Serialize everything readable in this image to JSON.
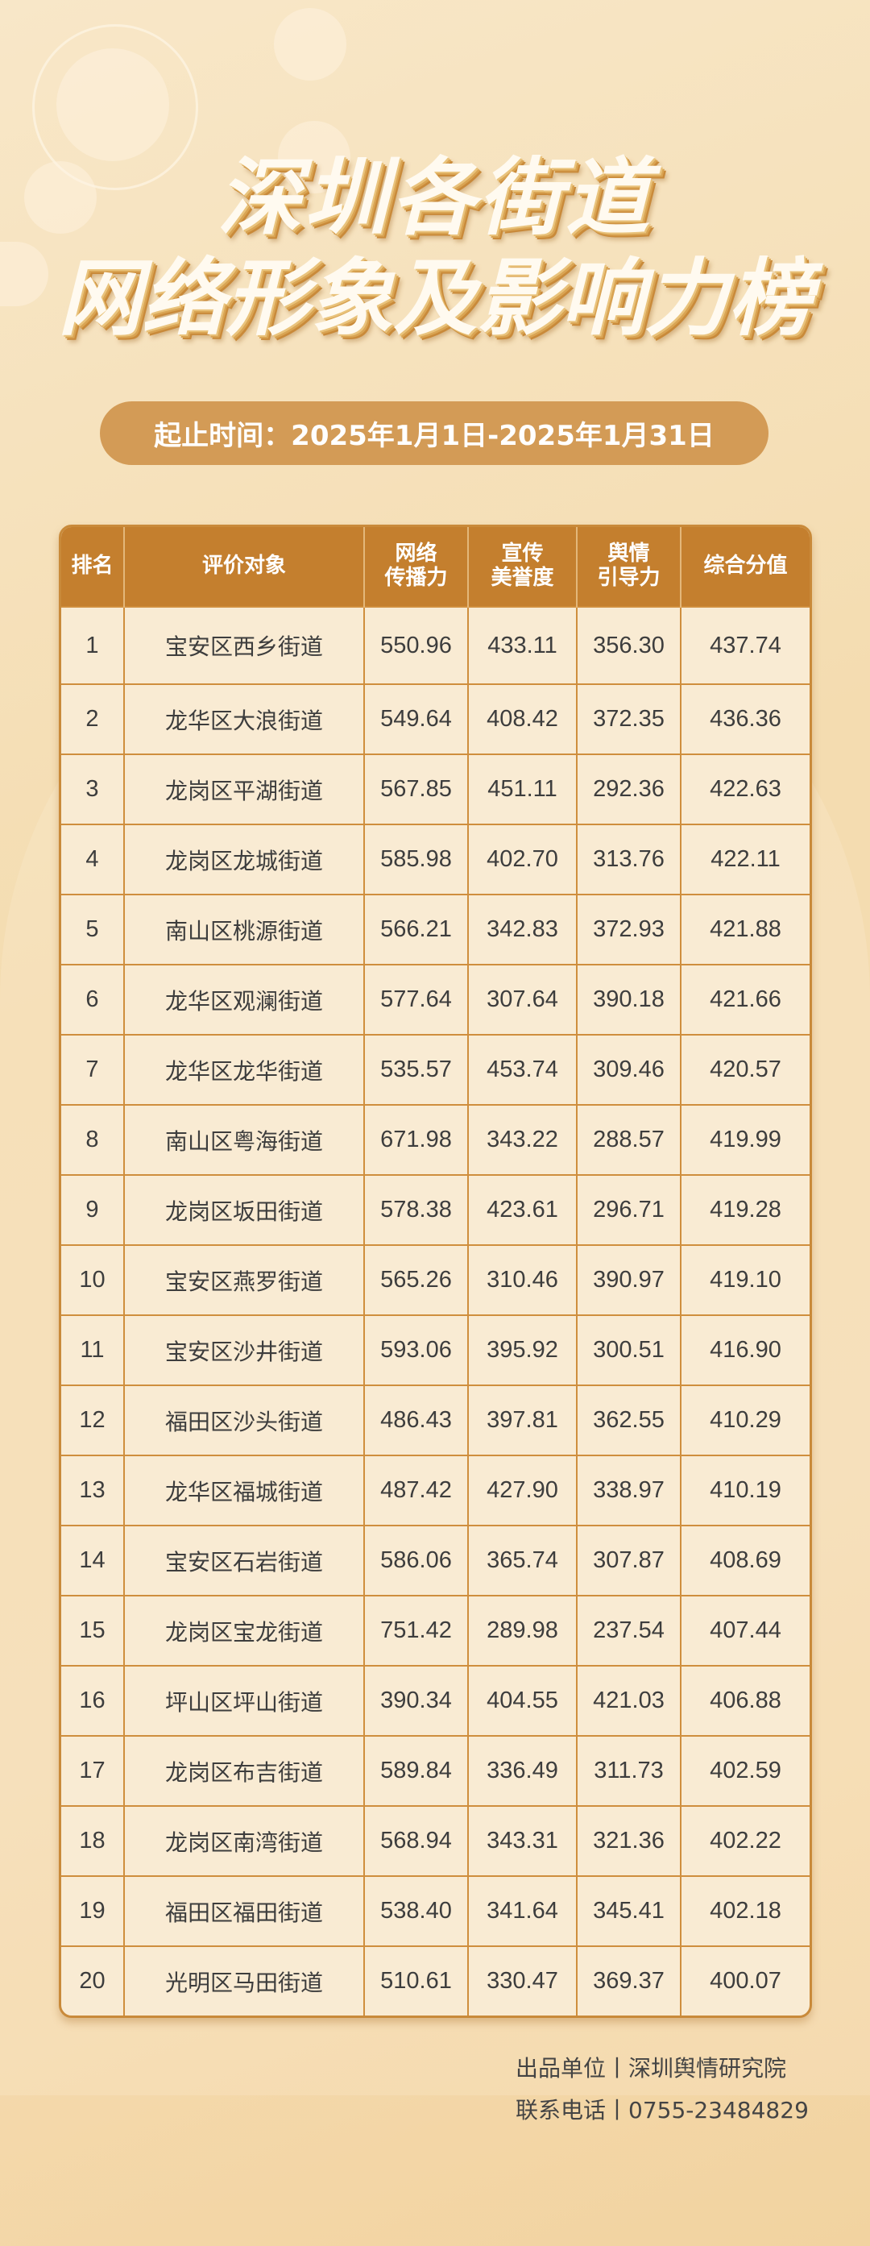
{
  "title": {
    "line1": "深圳各街道",
    "line2": "网络形象及影响力榜"
  },
  "period": "起止时间：2025年1月1日-2025年1月31日",
  "table": {
    "headers": [
      "排名",
      "评价对象",
      "网络\n传播力",
      "宣传\n美誉度",
      "舆情\n引导力",
      "综合分值"
    ],
    "rows": [
      [
        "1",
        "宝安区西乡街道",
        "550.96",
        "433.11",
        "356.30",
        "437.74"
      ],
      [
        "2",
        "龙华区大浪街道",
        "549.64",
        "408.42",
        "372.35",
        "436.36"
      ],
      [
        "3",
        "龙岗区平湖街道",
        "567.85",
        "451.11",
        "292.36",
        "422.63"
      ],
      [
        "4",
        "龙岗区龙城街道",
        "585.98",
        "402.70",
        "313.76",
        "422.11"
      ],
      [
        "5",
        "南山区桃源街道",
        "566.21",
        "342.83",
        "372.93",
        "421.88"
      ],
      [
        "6",
        "龙华区观澜街道",
        "577.64",
        "307.64",
        "390.18",
        "421.66"
      ],
      [
        "7",
        "龙华区龙华街道",
        "535.57",
        "453.74",
        "309.46",
        "420.57"
      ],
      [
        "8",
        "南山区粤海街道",
        "671.98",
        "343.22",
        "288.57",
        "419.99"
      ],
      [
        "9",
        "龙岗区坂田街道",
        "578.38",
        "423.61",
        "296.71",
        "419.28"
      ],
      [
        "10",
        "宝安区燕罗街道",
        "565.26",
        "310.46",
        "390.97",
        "419.10"
      ],
      [
        "11",
        "宝安区沙井街道",
        "593.06",
        "395.92",
        "300.51",
        "416.90"
      ],
      [
        "12",
        "福田区沙头街道",
        "486.43",
        "397.81",
        "362.55",
        "410.29"
      ],
      [
        "13",
        "龙华区福城街道",
        "487.42",
        "427.90",
        "338.97",
        "410.19"
      ],
      [
        "14",
        "宝安区石岩街道",
        "586.06",
        "365.74",
        "307.87",
        "408.69"
      ],
      [
        "15",
        "龙岗区宝龙街道",
        "751.42",
        "289.98",
        "237.54",
        "407.44"
      ],
      [
        "16",
        "坪山区坪山街道",
        "390.34",
        "404.55",
        "421.03",
        "406.88"
      ],
      [
        "17",
        "龙岗区布吉街道",
        "589.84",
        "336.49",
        "311.73",
        "402.59"
      ],
      [
        "18",
        "龙岗区南湾街道",
        "568.94",
        "343.31",
        "321.36",
        "402.22"
      ],
      [
        "19",
        "福田区福田街道",
        "538.40",
        "341.64",
        "345.41",
        "402.18"
      ],
      [
        "20",
        "光明区马田街道",
        "510.61",
        "330.47",
        "369.37",
        "400.07"
      ]
    ]
  },
  "footer": {
    "producer": "出品单位丨深圳舆情研究院",
    "phone": "联系电话丨0755-23484829"
  },
  "colors": {
    "header": "#c47f2e",
    "pill": "#d39b56",
    "cell": "#f9ebd3",
    "border": "#cf8e3d"
  }
}
